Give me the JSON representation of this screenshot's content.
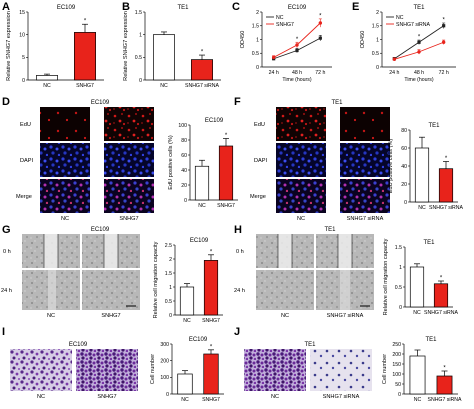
{
  "figure": {
    "panels": [
      {
        "letter": "A"
      },
      {
        "letter": "B"
      },
      {
        "letter": "C"
      },
      {
        "letter": "D"
      },
      {
        "letter": "E"
      },
      {
        "letter": "F"
      },
      {
        "letter": "G"
      },
      {
        "letter": "H"
      },
      {
        "letter": "I"
      },
      {
        "letter": "J"
      }
    ],
    "image_panels": {
      "D": {
        "title": "EC109",
        "row_labels": [
          "EdU",
          "DAPI",
          "Merge"
        ],
        "col_labels": [
          "NC",
          "SNHG7"
        ]
      },
      "F": {
        "title": "TE1",
        "row_labels": [
          "EdU",
          "DAPI",
          "Merge"
        ],
        "col_labels": [
          "NC",
          "SNHG7 siRNA"
        ]
      },
      "G": {
        "title": "EC109",
        "row_labels": [
          "0 h",
          "24 h"
        ],
        "col_labels": [
          "NC",
          "SNHG7"
        ]
      },
      "H": {
        "title": "TE1",
        "row_labels": [
          "0 h",
          "24 h"
        ],
        "col_labels": [
          "NC",
          "SNHG7 siRNA"
        ]
      },
      "I": {
        "title": "EC109",
        "col_labels": [
          "NC",
          "SNHG7"
        ]
      },
      "J": {
        "title": "TE1",
        "col_labels": [
          "NC",
          "SNHG7 siRNA"
        ]
      }
    },
    "colors": {
      "nc": "#ffffff",
      "treated": "#e8231b",
      "nc_line": "#222222",
      "axis": "#000000"
    }
  },
  "chart_data": [
    {
      "id": "A",
      "type": "bar",
      "title": "EC109",
      "ylabel": "Relative SNHG7 expression",
      "categories": [
        "NC",
        "SNHG7"
      ],
      "values": [
        1,
        10.5
      ],
      "errors": [
        0.3,
        1.8
      ],
      "yticks": [
        0,
        5,
        10,
        15
      ],
      "ylim": [
        0,
        15
      ],
      "significance": [
        "",
        "*"
      ]
    },
    {
      "id": "B",
      "type": "bar",
      "title": "TE1",
      "ylabel": "Relative SNHG7 expression",
      "categories": [
        "NC",
        "SNHG7 siRNA"
      ],
      "values": [
        1,
        0.45
      ],
      "errors": [
        0.06,
        0.1
      ],
      "yticks": [
        0.0,
        0.5,
        1.0,
        1.5
      ],
      "ylim": [
        0,
        1.5
      ],
      "significance": [
        "",
        "*"
      ]
    },
    {
      "id": "C",
      "type": "line",
      "title": "EC109",
      "ylabel": "OD450",
      "xlabel": "Time (hours)",
      "x": [
        "24 h",
        "48 h",
        "72 h"
      ],
      "yticks": [
        0,
        0.5,
        1.0,
        1.5,
        2.0
      ],
      "ylim": [
        0,
        2.0
      ],
      "legend": "top-left",
      "series": [
        {
          "name": "NC",
          "values": [
            0.3,
            0.6,
            1.05
          ],
          "errors": [
            0.05,
            0.08,
            0.1
          ]
        },
        {
          "name": "SNHG7",
          "values": [
            0.35,
            0.8,
            1.6
          ],
          "errors": [
            0.06,
            0.1,
            0.15
          ]
        }
      ],
      "significance": [
        "",
        "*",
        "*"
      ]
    },
    {
      "id": "E",
      "type": "line",
      "title": "TE1",
      "ylabel": "OD450",
      "xlabel": "Time (hours)",
      "x": [
        "24 h",
        "48 h",
        "72 h"
      ],
      "yticks": [
        0,
        0.5,
        1.0,
        1.5,
        2.0
      ],
      "ylim": [
        0,
        2.0
      ],
      "legend": "top-left",
      "series": [
        {
          "name": "NC",
          "values": [
            0.3,
            0.9,
            1.5
          ],
          "errors": [
            0.05,
            0.08,
            0.1
          ]
        },
        {
          "name": "SNHG7 siRNA",
          "values": [
            0.28,
            0.55,
            0.9
          ],
          "errors": [
            0.05,
            0.08,
            0.08
          ]
        }
      ],
      "significance": [
        "",
        "*",
        "*"
      ]
    },
    {
      "id": "D",
      "type": "bar",
      "title": "EC109",
      "ylabel": "EdU positive cells (%)",
      "categories": [
        "NC",
        "SNHG7"
      ],
      "values": [
        45,
        72
      ],
      "errors": [
        8,
        10
      ],
      "yticks": [
        0,
        20,
        40,
        60,
        80,
        100
      ],
      "ylim": [
        0,
        100
      ],
      "significance": [
        "",
        "*"
      ]
    },
    {
      "id": "F",
      "type": "bar",
      "title": "TE1",
      "ylabel": "EdU positive cells (%)",
      "categories": [
        "NC",
        "SNHG7 siRNA"
      ],
      "values": [
        60,
        37
      ],
      "errors": [
        12,
        8
      ],
      "yticks": [
        0,
        20,
        40,
        60,
        80
      ],
      "ylim": [
        0,
        80
      ],
      "significance": [
        "",
        "*"
      ]
    },
    {
      "id": "G",
      "type": "bar",
      "title": "EC109",
      "ylabel": "Relative cell migration capacity",
      "categories": [
        "NC",
        "SNHG7"
      ],
      "values": [
        1,
        1.95
      ],
      "errors": [
        0.12,
        0.2
      ],
      "yticks": [
        0.0,
        0.5,
        1.0,
        1.5,
        2.0,
        2.5
      ],
      "ylim": [
        0,
        2.5
      ],
      "significance": [
        "",
        "*"
      ]
    },
    {
      "id": "H",
      "type": "bar",
      "title": "TE1",
      "ylabel": "Relative cell migration capacity",
      "categories": [
        "NC",
        "SNHG7 siRNA"
      ],
      "values": [
        1,
        0.58
      ],
      "errors": [
        0.08,
        0.07
      ],
      "yticks": [
        0.0,
        0.5,
        1.0,
        1.5
      ],
      "ylim": [
        0,
        1.5
      ],
      "significance": [
        "",
        "*"
      ]
    },
    {
      "id": "I",
      "type": "bar",
      "title": "EC109",
      "ylabel": "Cell number",
      "categories": [
        "NC",
        "SNHG7"
      ],
      "values": [
        120,
        240
      ],
      "errors": [
        20,
        25
      ],
      "yticks": [
        0,
        100,
        200,
        300
      ],
      "ylim": [
        0,
        300
      ],
      "significance": [
        "",
        "*"
      ]
    },
    {
      "id": "J",
      "type": "bar",
      "title": "TE1",
      "ylabel": "Cell number",
      "categories": [
        "NC",
        "SNHG7 siRNA"
      ],
      "values": [
        190,
        90
      ],
      "errors": [
        30,
        25
      ],
      "yticks": [
        0,
        50,
        100,
        150,
        200,
        250
      ],
      "ylim": [
        0,
        250
      ],
      "significance": [
        "",
        "*"
      ]
    }
  ]
}
